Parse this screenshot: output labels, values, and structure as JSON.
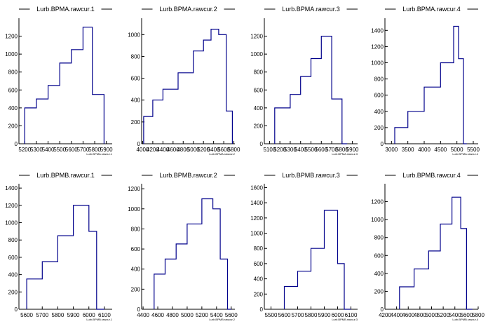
{
  "style": {
    "line_color": "#00008b",
    "axis_color": "#000000",
    "background": "#ffffff"
  },
  "chart_data": [
    {
      "type": "histogram",
      "title": "Lurb.BPMA.rawcur.1",
      "xlabel": "Lurb.BPMA.rawcur.1",
      "xlim": [
        5150,
        5950
      ],
      "ylim": [
        0,
        1400
      ],
      "xticks": [
        5200,
        5300,
        5400,
        5500,
        5600,
        5700,
        5800,
        5900
      ],
      "yticks": [
        200,
        400,
        600,
        800,
        1000,
        1200
      ],
      "bin_edges": [
        5200,
        5300,
        5400,
        5500,
        5600,
        5700,
        5780,
        5880
      ],
      "bin_values": [
        0,
        400,
        500,
        650,
        900,
        1050,
        1300,
        550,
        0
      ]
    },
    {
      "type": "histogram",
      "title": "Lurb.BPMA.rawcur.2",
      "xlabel": "Lurb.BPMA.rawcur.2",
      "xlim": [
        3980,
        5820
      ],
      "ylim": [
        0,
        1150
      ],
      "xticks": [
        4000,
        4200,
        4400,
        4600,
        4800,
        5000,
        5200,
        5400,
        5600,
        5800
      ],
      "yticks": [
        200,
        400,
        600,
        800,
        1000
      ],
      "bin_edges": [
        4020,
        4200,
        4400,
        4700,
        5000,
        5200,
        5350,
        5500,
        5650,
        5770
      ],
      "bin_values": [
        0,
        250,
        400,
        500,
        650,
        850,
        950,
        1050,
        1000,
        300,
        0
      ]
    },
    {
      "type": "histogram",
      "title": "Lurb.BPMA.rawcur.3",
      "xlabel": "Lurb.BPMA.rawcur.3",
      "xlim": [
        5050,
        5950
      ],
      "ylim": [
        0,
        1400
      ],
      "xticks": [
        5100,
        5200,
        5300,
        5400,
        5500,
        5600,
        5700,
        5800,
        5900
      ],
      "yticks": [
        200,
        400,
        600,
        800,
        1000,
        1200
      ],
      "bin_edges": [
        5150,
        5300,
        5400,
        5500,
        5600,
        5700,
        5800,
        5850
      ],
      "bin_values": [
        0,
        400,
        550,
        750,
        950,
        1200,
        500,
        0
      ]
    },
    {
      "type": "histogram",
      "title": "Lurb.BPMA.rawcur.4",
      "xlabel": "Lurb.BPMA.rawcur.4",
      "xlim": [
        2800,
        5650
      ],
      "ylim": [
        0,
        1550
      ],
      "xticks": [
        3000,
        3500,
        4000,
        4500,
        5000,
        5500
      ],
      "yticks": [
        200,
        400,
        600,
        800,
        1000,
        1200,
        1400
      ],
      "bin_edges": [
        3100,
        3500,
        4000,
        4500,
        4900,
        5050,
        5200,
        5300
      ],
      "bin_values": [
        0,
        200,
        400,
        700,
        1000,
        1450,
        1050,
        0
      ]
    },
    {
      "type": "histogram",
      "title": "Lurb.BPMB.rawcur.1",
      "xlabel": "Lurb.BPMB.rawcur.1",
      "xlim": [
        5550,
        6150
      ],
      "ylim": [
        0,
        1450
      ],
      "xticks": [
        5600,
        5700,
        5800,
        5900,
        6000,
        6100
      ],
      "yticks": [
        200,
        400,
        600,
        800,
        1000,
        1200,
        1400
      ],
      "bin_edges": [
        5600,
        5700,
        5800,
        5900,
        6000,
        6050,
        6100
      ],
      "bin_values": [
        0,
        350,
        550,
        850,
        1200,
        900,
        0
      ]
    },
    {
      "type": "histogram",
      "title": "Lurb.BPMB.rawcur.2",
      "xlabel": "Lurb.BPMB.rawcur.2",
      "xlim": [
        4380,
        5650
      ],
      "ylim": [
        0,
        1250
      ],
      "xticks": [
        4400,
        4600,
        4800,
        5000,
        5200,
        5400,
        5600
      ],
      "yticks": [
        200,
        400,
        600,
        800,
        1000,
        1200
      ],
      "bin_edges": [
        4550,
        4700,
        4850,
        5000,
        5200,
        5350,
        5450,
        5550,
        5600
      ],
      "bin_values": [
        0,
        350,
        500,
        650,
        850,
        1100,
        1000,
        500,
        0
      ]
    },
    {
      "type": "histogram",
      "title": "Lurb.BPMB.rawcur.3",
      "xlabel": "Lurb.BPMB.rawcur.3",
      "xlim": [
        5450,
        6150
      ],
      "ylim": [
        0,
        1650
      ],
      "xticks": [
        5500,
        5600,
        5700,
        5800,
        5900,
        6000,
        6100
      ],
      "yticks": [
        200,
        400,
        600,
        800,
        1000,
        1200,
        1400,
        1600
      ],
      "bin_edges": [
        5600,
        5700,
        5800,
        5900,
        6000,
        6050,
        6100
      ],
      "bin_values": [
        0,
        300,
        500,
        800,
        1300,
        600,
        0
      ]
    },
    {
      "type": "histogram",
      "title": "Lurb.BPMB.rawcur.4",
      "xlabel": "Lurb.BPMB.rawcur.4",
      "xlim": [
        4200,
        5800
      ],
      "ylim": [
        0,
        1400
      ],
      "xticks": [
        4200,
        4400,
        4600,
        4800,
        5000,
        5200,
        5400,
        5600,
        5800
      ],
      "yticks": [
        200,
        400,
        600,
        800,
        1000,
        1200
      ],
      "bin_edges": [
        4450,
        4700,
        4950,
        5150,
        5350,
        5500,
        5600,
        5700
      ],
      "bin_values": [
        0,
        250,
        450,
        650,
        950,
        1250,
        900,
        0
      ]
    }
  ]
}
